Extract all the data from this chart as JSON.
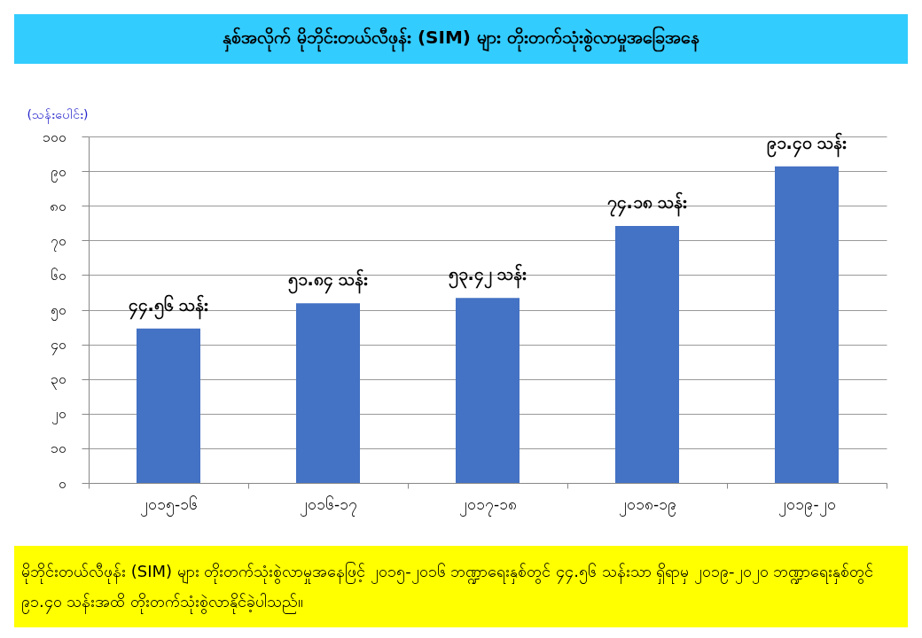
{
  "chart_data": {
    "type": "bar",
    "title": "နှစ်အလိုက် မိုဘိုင်းတယ်လီဖုန်း (SIM) များ တိုးတက်သုံးစွဲလာမှုအခြေအနေ",
    "ylabel": "(သန်းပေါင်း)",
    "categories": [
      "၂၀၁၅-၁၆",
      "၂၀၁၆-၁၇",
      "၂၀၁၇-၁၈",
      "၂၀၁၈-၁၉",
      "၂၀၁၉-၂၀"
    ],
    "values": [
      44.56,
      51.84,
      53.42,
      74.18,
      91.4
    ],
    "value_labels": [
      "၄၄.၅၆ သန်း",
      "၅၁.၈၄ သန်း",
      "၅၃.၄၂ သန်း",
      "၇၄.၁၈ သန်း",
      "၉၁.၄၀ သန်း"
    ],
    "color": "#4472c4",
    "ylim": [
      0,
      100
    ],
    "yticks": [
      {
        "value": 0,
        "label": "၀"
      },
      {
        "value": 10,
        "label": "၁၀"
      },
      {
        "value": 20,
        "label": "၂၀"
      },
      {
        "value": 30,
        "label": "၃၀"
      },
      {
        "value": 40,
        "label": "၄၀"
      },
      {
        "value": 50,
        "label": "၅၀"
      },
      {
        "value": 60,
        "label": "၆၀"
      },
      {
        "value": 70,
        "label": "၇၀"
      },
      {
        "value": 80,
        "label": "၈၀"
      },
      {
        "value": 90,
        "label": "၉၀"
      },
      {
        "value": 100,
        "label": "၁၀၀"
      }
    ],
    "grid": "y",
    "annotations": [
      "မိုဘိုင်းတယ်လီဖုန်း (SIM) များ တိုးတက်သုံးစွဲလာမှုအနေဖြင့် ၂၀၁၅-၂၀၁၆ ဘဏ္ဍာရေးနှစ်တွင် ၄၄.၅၆ သန်းသာ ရှိရာမှ ၂၀၁၉-၂၀၂၀ ဘဏ္ဍာရေးနှစ်တွင် ၉၁.၄၀ သန်းအထိ တိုးတက်သုံးစွဲလာနိုင်ခဲ့ပါသည်။"
    ]
  }
}
